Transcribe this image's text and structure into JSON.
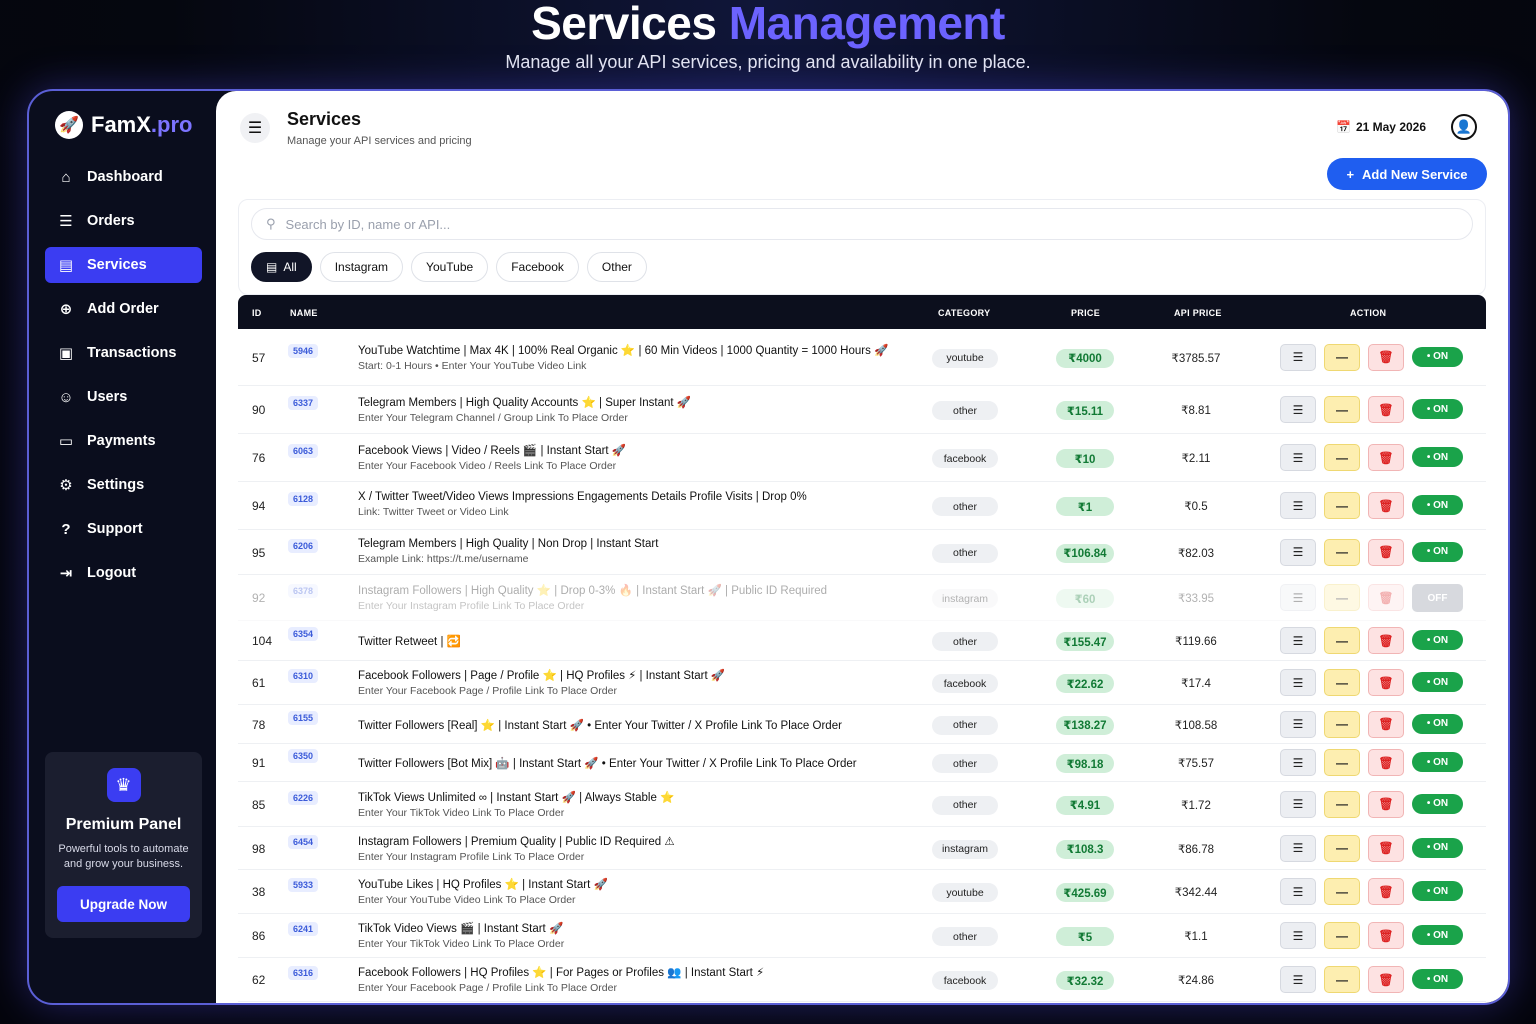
{
  "hero": {
    "title_main": "Services",
    "title_accent": "Management",
    "subtitle": "Manage all your API services, pricing and availability in one place."
  },
  "sidebar": {
    "brand_name": "FamX",
    "brand_suffix": ".pro",
    "items": [
      {
        "label": "Dashboard",
        "icon": "home-icon"
      },
      {
        "label": "Orders",
        "icon": "receipt-icon"
      },
      {
        "label": "Services",
        "icon": "server-icon",
        "active": true
      },
      {
        "label": "Add Order",
        "icon": "plus-box-icon"
      },
      {
        "label": "Transactions",
        "icon": "wallet-icon"
      },
      {
        "label": "Users",
        "icon": "users-icon"
      },
      {
        "label": "Payments",
        "icon": "card-icon"
      },
      {
        "label": "Settings",
        "icon": "gear-icon"
      },
      {
        "label": "Support",
        "icon": "help-icon"
      },
      {
        "label": "Logout",
        "icon": "logout-icon"
      }
    ],
    "premium": {
      "title": "Premium Panel",
      "text": "Powerful tools to automate and grow your business.",
      "button": "Upgrade Now"
    }
  },
  "header": {
    "title": "Services",
    "subtitle": "Manage your API services and pricing",
    "date": "21 May 2026",
    "add_button": "Add New Service"
  },
  "search": {
    "placeholder": "Search by ID, name or API..."
  },
  "filters": [
    "All",
    "Instagram",
    "YouTube",
    "Facebook",
    "Other"
  ],
  "table": {
    "headers": {
      "id": "ID",
      "name": "NAME",
      "category": "CATEGORY",
      "price": "PRICE",
      "api_price": "API PRICE",
      "action": "ACTION"
    },
    "rows": [
      {
        "id": "57",
        "code": "5946",
        "name": "YouTube Watchtime | Max 4K | 100% Real Organic ⭐ | 60 Min Videos | 1000 Quantity = 1000 Hours 🚀",
        "sub": "Start: 0-1 Hours • Enter Your YouTube Video Link",
        "category": "youtube",
        "price": "₹4000",
        "api_price": "₹3785.57",
        "status": "• ON"
      },
      {
        "id": "90",
        "code": "6337",
        "name": "Telegram Members | High Quality Accounts ⭐ | Super Instant 🚀",
        "sub": "Enter Your Telegram Channel / Group Link To Place Order",
        "category": "other",
        "price": "₹15.11",
        "api_price": "₹8.81",
        "status": "• ON"
      },
      {
        "id": "76",
        "code": "6063",
        "name": "Facebook Views | Video / Reels 🎬 | Instant Start 🚀",
        "sub": "Enter Your Facebook Video / Reels Link To Place Order",
        "category": "facebook",
        "price": "₹10",
        "api_price": "₹2.11",
        "status": "• ON"
      },
      {
        "id": "94",
        "code": "6128",
        "name": "X / Twitter Tweet/Video Views Impressions Engagements Details Profile Visits | Drop 0%",
        "sub": "Link: Twitter Tweet or Video Link",
        "category": "other",
        "price": "₹1",
        "api_price": "₹0.5",
        "status": "• ON"
      },
      {
        "id": "95",
        "code": "6206",
        "name": "Telegram Members | High Quality | Non Drop | Instant Start",
        "sub": "Example Link: https://t.me/username",
        "category": "other",
        "price": "₹106.84",
        "api_price": "₹82.03",
        "status": "• ON"
      },
      {
        "id": "92",
        "code": "6378",
        "name": "Instagram Followers | High Quality ⭐ | Drop 0-3% 🔥 | Instant Start 🚀 | Public ID Required",
        "sub": "Enter Your Instagram Profile Link To Place Order",
        "category": "instagram",
        "price": "₹60",
        "api_price": "₹33.95",
        "status": "OFF",
        "off": true
      },
      {
        "id": "104",
        "code": "6354",
        "name": "Twitter Retweet | 🔁",
        "sub": "",
        "category": "other",
        "price": "₹155.47",
        "api_price": "₹119.66",
        "status": "• ON"
      },
      {
        "id": "61",
        "code": "6310",
        "name": "Facebook Followers | Page / Profile ⭐ | HQ Profiles ⚡ | Instant Start 🚀",
        "sub": "Enter Your Facebook Page / Profile Link To Place Order",
        "category": "facebook",
        "price": "₹22.62",
        "api_price": "₹17.4",
        "status": "• ON"
      },
      {
        "id": "78",
        "code": "6155",
        "name": "Twitter Followers [Real] ⭐ | Instant Start 🚀 • Enter Your Twitter / X Profile Link To Place Order",
        "sub": "",
        "category": "other",
        "price": "₹138.27",
        "api_price": "₹108.58",
        "status": "• ON"
      },
      {
        "id": "91",
        "code": "6350",
        "name": "Twitter Followers [Bot Mix] 🤖 | Instant Start 🚀 • Enter Your Twitter / X Profile Link To Place Order",
        "sub": "",
        "category": "other",
        "price": "₹98.18",
        "api_price": "₹75.57",
        "status": "• ON"
      },
      {
        "id": "85",
        "code": "6226",
        "name": "TikTok Views Unlimited ∞ | Instant Start 🚀 | Always Stable ⭐",
        "sub": "Enter Your TikTok Video Link To Place Order",
        "category": "other",
        "price": "₹4.91",
        "api_price": "₹1.72",
        "status": "• ON"
      },
      {
        "id": "98",
        "code": "6454",
        "name": "Instagram Followers | Premium Quality | Public ID Required ⚠",
        "sub": "Enter Your Instagram Profile Link To Place Order",
        "category": "instagram",
        "price": "₹108.3",
        "api_price": "₹86.78",
        "status": "• ON"
      },
      {
        "id": "38",
        "code": "5933",
        "name": "YouTube Likes | HQ Profiles ⭐ | Instant Start 🚀",
        "sub": "Enter Your YouTube Video Link To Place Order",
        "category": "youtube",
        "price": "₹425.69",
        "api_price": "₹342.44",
        "status": "• ON"
      },
      {
        "id": "86",
        "code": "6241",
        "name": "TikTok Video Views 🎬 | Instant Start 🚀",
        "sub": "Enter Your TikTok Video Link To Place Order",
        "category": "other",
        "price": "₹5",
        "api_price": "₹1.1",
        "status": "• ON"
      },
      {
        "id": "62",
        "code": "6316",
        "name": "Facebook Followers | HQ Profiles ⭐ | For Pages or Profiles 👥 | Instant Start ⚡",
        "sub": "Enter Your Facebook Page / Profile Link To Place Order",
        "category": "facebook",
        "price": "₹32.32",
        "api_price": "₹24.86",
        "status": "• ON"
      }
    ]
  }
}
